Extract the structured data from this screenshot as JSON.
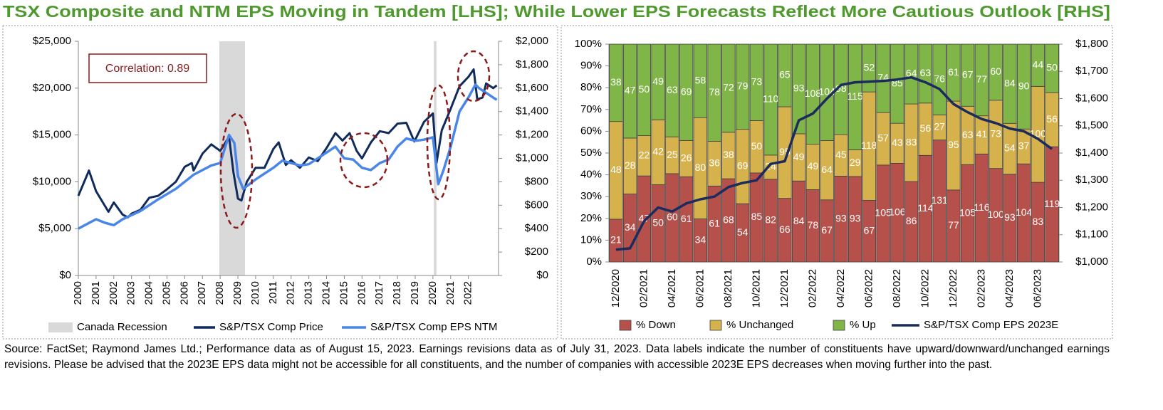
{
  "title": "TSX Composite and NTM EPS Moving in Tandem [LHS]; While Lower EPS Forecasts Reflect More Cautious Outlook [RHS]",
  "chart_data": [
    {
      "type": "line",
      "annotation": "Correlation: 0.89",
      "xlim": [
        2000,
        2023.7
      ],
      "xticks": [
        2000,
        2001,
        2002,
        2003,
        2004,
        2005,
        2006,
        2007,
        2008,
        2009,
        2010,
        2011,
        2012,
        2013,
        2014,
        2015,
        2016,
        2017,
        2018,
        2019,
        2020,
        2021,
        2022
      ],
      "ylim": [
        0,
        25000
      ],
      "yticks": [
        {
          "value": 0,
          "label": "$0"
        },
        {
          "value": 5000,
          "label": "$5,000"
        },
        {
          "value": 10000,
          "label": "$10,000"
        },
        {
          "value": 15000,
          "label": "$15,000"
        },
        {
          "value": 20000,
          "label": "$20,000"
        },
        {
          "value": 25000,
          "label": "$25,000"
        }
      ],
      "y2lim": [
        0,
        2000
      ],
      "y2ticks": [
        {
          "value": 0,
          "label": "$0"
        },
        {
          "value": 200,
          "label": "$200"
        },
        {
          "value": 400,
          "label": "$400"
        },
        {
          "value": 600,
          "label": "$600"
        },
        {
          "value": 800,
          "label": "$800"
        },
        {
          "value": 1000,
          "label": "$1,000"
        },
        {
          "value": 1200,
          "label": "$1,200"
        },
        {
          "value": 1400,
          "label": "$1,400"
        },
        {
          "value": 1600,
          "label": "$1,600"
        },
        {
          "value": 1800,
          "label": "$1,800"
        },
        {
          "value": 2000,
          "label": "$2,000"
        }
      ],
      "shading": {
        "name": "Canada Recession",
        "color": "#d9d9d9",
        "ranges": [
          [
            2007.95,
            2009.4
          ],
          [
            2020.05,
            2020.2
          ]
        ]
      },
      "series": [
        {
          "name": "S&P/TSX Comp Price",
          "color": "#0f2b5b",
          "x": [
            2000.0,
            2000.6,
            2001.0,
            2001.7,
            2002.0,
            2002.5,
            2002.8,
            2003.0,
            2003.5,
            2004.0,
            2004.5,
            2005.0,
            2005.5,
            2006.0,
            2006.4,
            2006.5,
            2007.0,
            2007.5,
            2008.0,
            2008.5,
            2008.75,
            2009.0,
            2009.2,
            2009.5,
            2010.0,
            2010.5,
            2011.0,
            2011.3,
            2011.7,
            2012.0,
            2012.5,
            2013.0,
            2013.5,
            2014.0,
            2014.5,
            2014.9,
            2015.3,
            2015.7,
            2016.0,
            2016.5,
            2017.0,
            2017.5,
            2018.0,
            2018.5,
            2018.95,
            2019.5,
            2020.0,
            2020.2,
            2020.5,
            2021.0,
            2021.5,
            2022.0,
            2022.3,
            2022.5,
            2022.8,
            2023.0,
            2023.4,
            2023.6
          ],
          "values": [
            8500,
            11200,
            9000,
            6800,
            7800,
            6500,
            6200,
            6600,
            7000,
            8300,
            8500,
            9200,
            10000,
            11600,
            12000,
            11200,
            13000,
            14000,
            13300,
            14800,
            11000,
            8200,
            8000,
            10000,
            11500,
            11500,
            13500,
            14200,
            11800,
            12300,
            11500,
            12600,
            12200,
            13600,
            15200,
            14400,
            15200,
            13300,
            12500,
            14200,
            15400,
            15200,
            16200,
            16300,
            14300,
            16400,
            17300,
            12000,
            15500,
            17800,
            20200,
            21200,
            22000,
            18800,
            19000,
            20500,
            20000,
            20300
          ]
        },
        {
          "name": "S&P/TSX Comp EPS NTM",
          "color": "#4a86e8",
          "axis": "y2",
          "x": [
            2000.0,
            2001.0,
            2001.5,
            2002.0,
            2002.5,
            2003.5,
            2004.5,
            2005.5,
            2006.5,
            2007.5,
            2008.0,
            2008.5,
            2008.8,
            2009.0,
            2009.3,
            2010.0,
            2011.0,
            2011.5,
            2012.0,
            2012.5,
            2013.0,
            2014.0,
            2014.5,
            2015.0,
            2015.5,
            2016.0,
            2016.5,
            2017.0,
            2017.5,
            2018.0,
            2018.5,
            2019.0,
            2019.5,
            2020.0,
            2020.3,
            2020.6,
            2021.0,
            2021.5,
            2022.0,
            2022.4,
            2022.6,
            2023.0,
            2023.6
          ],
          "values": [
            400,
            480,
            450,
            430,
            480,
            550,
            650,
            740,
            860,
            940,
            960,
            1200,
            1130,
            850,
            740,
            820,
            920,
            980,
            960,
            940,
            950,
            1050,
            1100,
            1000,
            990,
            920,
            900,
            960,
            990,
            1100,
            1170,
            1150,
            1160,
            1180,
            780,
            900,
            1100,
            1400,
            1520,
            1630,
            1600,
            1560,
            1500
          ]
        }
      ]
    },
    {
      "type": "bar",
      "normalize": true,
      "categories": [
        "12/2020",
        null,
        "02/2021",
        null,
        "04/2021",
        null,
        "06/2021",
        null,
        "08/2021",
        null,
        "10/2021",
        null,
        "12/2021",
        null,
        "02/2022",
        null,
        "04/2022",
        null,
        "06/2022",
        null,
        "08/2022",
        null,
        "10/2022",
        null,
        "12/2022",
        null,
        "02/2023",
        null,
        "04/2023",
        null,
        "06/2023",
        null
      ],
      "ylim": [
        0,
        100
      ],
      "yticks": [
        {
          "value": 0,
          "label": "0%"
        },
        {
          "value": 10,
          "label": "10%"
        },
        {
          "value": 20,
          "label": "20%"
        },
        {
          "value": 30,
          "label": "30%"
        },
        {
          "value": 40,
          "label": "40%"
        },
        {
          "value": 50,
          "label": "50%"
        },
        {
          "value": 60,
          "label": "60%"
        },
        {
          "value": 70,
          "label": "70%"
        },
        {
          "value": 80,
          "label": "80%"
        },
        {
          "value": 90,
          "label": "90%"
        },
        {
          "value": 100,
          "label": "100%"
        }
      ],
      "y2lim": [
        1000,
        1800
      ],
      "y2ticks": [
        {
          "value": 1000,
          "label": "$1,000"
        },
        {
          "value": 1100,
          "label": "$1,100"
        },
        {
          "value": 1200,
          "label": "$1,200"
        },
        {
          "value": 1300,
          "label": "$1,300"
        },
        {
          "value": 1400,
          "label": "$1,400"
        },
        {
          "value": 1500,
          "label": "$1,500"
        },
        {
          "value": 1600,
          "label": "$1,600"
        },
        {
          "value": 1700,
          "label": "$1,700"
        },
        {
          "value": 1800,
          "label": "$1,800"
        }
      ],
      "series": [
        {
          "name": "% Down",
          "color": "#b5514a",
          "type": "bar",
          "values": [
            21,
            34,
            47,
            50,
            60,
            61,
            34,
            61,
            68,
            54,
            85,
            82,
            66,
            84,
            78,
            67,
            93,
            93,
            67,
            105,
            106,
            86,
            114,
            131,
            77,
            105,
            116,
            100,
            93,
            104,
            83,
            119
          ]
        },
        {
          "name": "% Unchanged",
          "color": "#d6b24c",
          "type": "bar",
          "values": [
            48,
            28,
            22,
            42,
            25,
            26,
            80,
            36,
            38,
            69,
            50,
            24,
            95,
            49,
            49,
            64,
            45,
            29,
            118,
            57,
            43,
            83,
            56,
            27,
            95,
            63,
            41,
            73,
            54,
            37,
            100,
            56
          ]
        },
        {
          "name": "% Up",
          "color": "#80b548",
          "type": "bar",
          "values": [
            38,
            47,
            50,
            49,
            63,
            69,
            58,
            78,
            72,
            79,
            73,
            110,
            65,
            93,
            108,
            104,
            98,
            115,
            52,
            74,
            85,
            64,
            63,
            76,
            61,
            67,
            77,
            60,
            84,
            90,
            44,
            50
          ]
        },
        {
          "name": "S&P/TSX Comp EPS 2023E",
          "color": "#1c2b5e",
          "type": "line",
          "axis": "y2",
          "values": [
            1045,
            1050,
            1150,
            1200,
            1185,
            1215,
            1230,
            1240,
            1275,
            1290,
            1300,
            1360,
            1370,
            1520,
            1545,
            1600,
            1650,
            1660,
            1662,
            1665,
            1670,
            1678,
            1660,
            1635,
            1580,
            1550,
            1525,
            1510,
            1490,
            1480,
            1452,
            1415
          ]
        }
      ]
    }
  ],
  "footnote": "Source: FactSet; Raymond James Ltd.; Performance data as of August 15, 2023. Earnings revisions data as of July 31, 2023. Data labels indicate the number of constituents have upward/downward/unchanged earnings revisions. Please be advised that the 2023E EPS data might not be accessible for all constituents, and the number of companies with accessible 2023E EPS decreases when moving further into the past."
}
